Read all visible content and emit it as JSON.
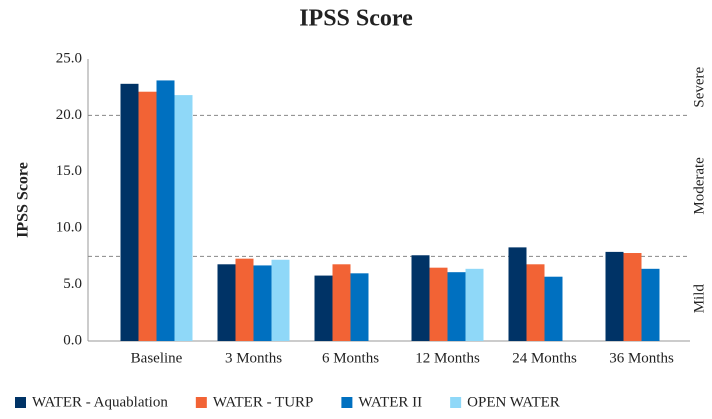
{
  "chart_data": {
    "type": "bar",
    "title": "IPSS Score",
    "y_label": "IPSS Score",
    "categories": [
      "Baseline",
      "3 Months",
      "6 Months",
      "12 Months",
      "24 Months",
      "36 Months"
    ],
    "series": [
      {
        "name": "WATER - Aquablation",
        "color": "#003366",
        "values": [
          22.8,
          6.8,
          5.8,
          7.6,
          8.3,
          7.9
        ]
      },
      {
        "name": "WATER - TURP",
        "color": "#f26335",
        "values": [
          22.1,
          7.3,
          6.8,
          6.5,
          6.8,
          7.8
        ]
      },
      {
        "name": "WATER II",
        "color": "#0070c0",
        "values": [
          23.1,
          6.7,
          6.0,
          6.1,
          5.7,
          6.4
        ]
      },
      {
        "name": "OPEN WATER",
        "color": "#8fd8f8",
        "values": [
          21.8,
          7.2,
          null,
          6.4,
          null,
          null
        ]
      }
    ],
    "ylim": [
      0,
      25
    ],
    "yticks": [
      {
        "value": 0,
        "label": "0.0"
      },
      {
        "value": 5,
        "label": "5.0"
      },
      {
        "value": 10,
        "label": "10.0"
      },
      {
        "value": 15,
        "label": "15.0"
      },
      {
        "value": 20,
        "label": "20.0"
      },
      {
        "value": 25,
        "label": "25.0"
      }
    ],
    "zones": [
      {
        "label": "Mild",
        "range": [
          0,
          7.5
        ]
      },
      {
        "label": "Moderate",
        "range": [
          7.5,
          20
        ]
      },
      {
        "label": "Severe",
        "range": [
          20,
          25
        ]
      }
    ],
    "legend": "bottom"
  }
}
